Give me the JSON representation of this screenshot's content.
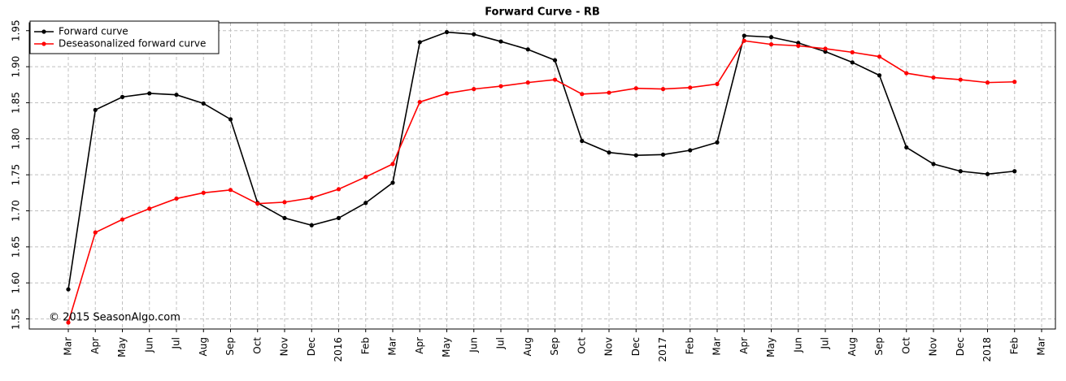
{
  "chart_data": {
    "type": "line",
    "title": "Forward Curve -  RB",
    "annotation": "© 2015 SeasonAlgo.com",
    "categories": [
      "Mar",
      "Apr",
      "May",
      "Jun",
      "Jul",
      "Aug",
      "Sep",
      "Oct",
      "Nov",
      "Dec",
      "2016",
      "Feb",
      "Mar",
      "Apr",
      "May",
      "Jun",
      "Jul",
      "Aug",
      "Sep",
      "Oct",
      "Nov",
      "Dec",
      "2017",
      "Feb",
      "Mar",
      "Apr",
      "May",
      "Jun",
      "Jul",
      "Aug",
      "Sep",
      "Oct",
      "Nov",
      "Dec",
      "2018",
      "Feb",
      "Mar"
    ],
    "series": [
      {
        "name": "Forward curve",
        "color": "#000000",
        "values": [
          1.591,
          1.84,
          1.858,
          1.863,
          1.861,
          1.849,
          1.827,
          1.711,
          1.69,
          1.68,
          1.69,
          1.711,
          1.739,
          1.934,
          1.948,
          1.945,
          1.935,
          1.924,
          1.909,
          1.797,
          1.781,
          1.777,
          1.778,
          1.784,
          1.795,
          1.943,
          1.941,
          1.933,
          1.921,
          1.906,
          1.888,
          1.788,
          1.765,
          1.755,
          1.751,
          1.755,
          null
        ]
      },
      {
        "name": "Deseasonalized forward curve",
        "color": "#ff0000",
        "values": [
          1.545,
          1.67,
          1.688,
          1.703,
          1.717,
          1.725,
          1.729,
          1.71,
          1.712,
          1.718,
          1.73,
          1.747,
          1.765,
          1.851,
          1.863,
          1.869,
          1.873,
          1.878,
          1.882,
          1.862,
          1.864,
          1.87,
          1.869,
          1.871,
          1.876,
          1.936,
          1.931,
          1.929,
          1.925,
          1.92,
          1.914,
          1.891,
          1.885,
          1.882,
          1.878,
          1.879,
          null
        ]
      }
    ],
    "ylim": [
      1.536,
      1.961
    ],
    "yticks": [
      {
        "value": 1.55,
        "label": "1.55"
      },
      {
        "value": 1.6,
        "label": "1.60"
      },
      {
        "value": 1.65,
        "label": "1.65"
      },
      {
        "value": 1.7,
        "label": "1.70"
      },
      {
        "value": 1.75,
        "label": "1.75"
      },
      {
        "value": 1.8,
        "label": "1.80"
      },
      {
        "value": 1.85,
        "label": "1.85"
      },
      {
        "value": 1.9,
        "label": "1.90"
      },
      {
        "value": 1.95,
        "label": "1.95"
      }
    ],
    "grid": true,
    "legend": "upper left"
  }
}
